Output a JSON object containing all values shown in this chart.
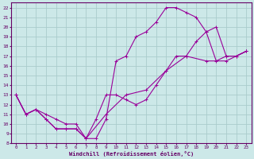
{
  "xlabel": "Windchill (Refroidissement éolien,°C)",
  "bg_color": "#cce8e8",
  "grid_color": "#aacccc",
  "line_color": "#990099",
  "spine_color": "#660066",
  "xlim": [
    -0.5,
    23.5
  ],
  "ylim": [
    8,
    22.5
  ],
  "xticks": [
    0,
    1,
    2,
    3,
    4,
    5,
    6,
    7,
    8,
    9,
    10,
    11,
    12,
    13,
    14,
    15,
    16,
    17,
    18,
    19,
    20,
    21,
    22,
    23
  ],
  "yticks": [
    8,
    9,
    10,
    11,
    12,
    13,
    14,
    15,
    16,
    17,
    18,
    19,
    20,
    21,
    22
  ],
  "line1_x": [
    0,
    1,
    2,
    3,
    4,
    5,
    6,
    7,
    8,
    9,
    10,
    11,
    12,
    13,
    14,
    15,
    16,
    17,
    18,
    19,
    20,
    21,
    22,
    23
  ],
  "line1_y": [
    13,
    11,
    11.5,
    10.5,
    9.5,
    9.5,
    9.5,
    8.5,
    8.5,
    10.5,
    16.5,
    17,
    19,
    19.5,
    20.5,
    22,
    22,
    21.5,
    21,
    19.5,
    20,
    17,
    17,
    17.5
  ],
  "line2_x": [
    0,
    1,
    2,
    3,
    4,
    5,
    6,
    7,
    8,
    9,
    10,
    11,
    12,
    13,
    14,
    15,
    16,
    17,
    18,
    19,
    20,
    21,
    22,
    23
  ],
  "line2_y": [
    13,
    11,
    11.5,
    10.5,
    9.5,
    9.5,
    9.5,
    8.5,
    10.5,
    13,
    13,
    12.5,
    12,
    12.5,
    14,
    15.5,
    17,
    17,
    18.5,
    19.5,
    16.5,
    17,
    17,
    17.5
  ],
  "line3_x": [
    0,
    1,
    2,
    3,
    4,
    5,
    6,
    7,
    9,
    11,
    13,
    15,
    17,
    19,
    21,
    23
  ],
  "line3_y": [
    13,
    11,
    11.5,
    11,
    10.5,
    10,
    10,
    8.5,
    11,
    13,
    13.5,
    15.5,
    17,
    16.5,
    16.5,
    17.5
  ]
}
